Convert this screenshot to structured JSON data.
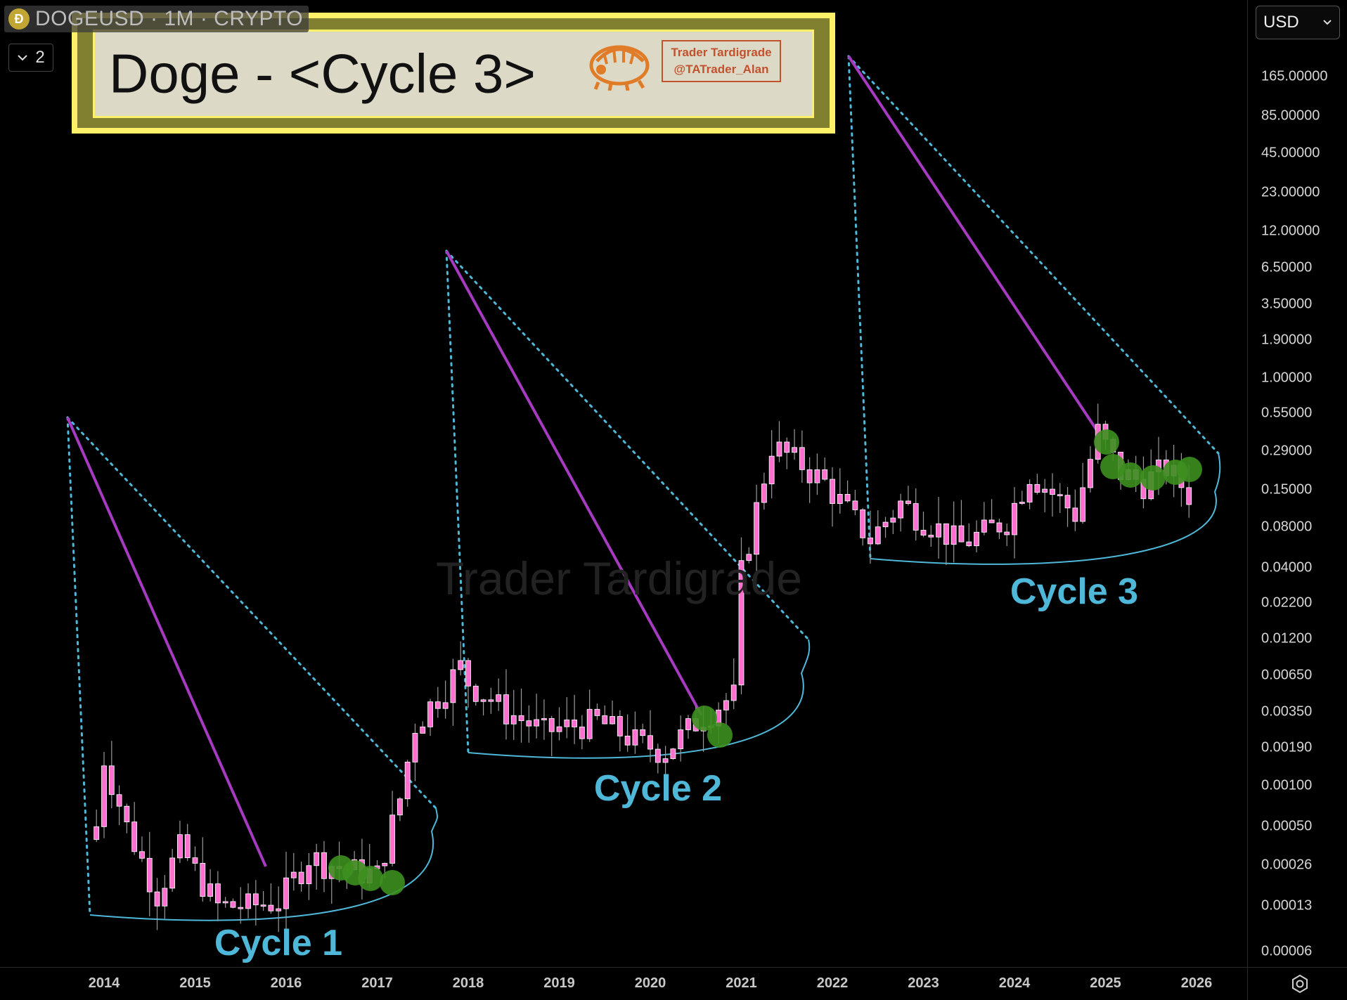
{
  "symbol_bar": {
    "coin_icon": "doge-coin-icon",
    "text": "DOGEUSD · 1M · CRYPTO"
  },
  "collapse_control": {
    "icon": "chevron-down-icon",
    "count": "2"
  },
  "currency": {
    "label": "USD",
    "icon": "chevron-down-icon"
  },
  "title_box": {
    "title": "Doge - <Cycle 3>",
    "logo_icon": "tardigrade-logo-icon",
    "handle_line1": "Trader Tardigrade",
    "handle_line2": "@TATrader_Alan"
  },
  "watermark": "Trader Tardigrade",
  "cycle_labels": [
    "Cycle 1",
    "Cycle 2",
    "Cycle 3"
  ],
  "settings_icon": "settings-gear-icon",
  "colors": {
    "background": "#000000",
    "candle": "#ff6fd0",
    "wick": "#9a9a9a",
    "trend_line": "#a63ac0",
    "dotted_line": "#4fb8d8",
    "bowl": "#4fb8d8",
    "marker": "#3d8f1f",
    "title_border": "#fff06a"
  },
  "chart_data": {
    "type": "candlestick",
    "title": "Doge - <Cycle 3>",
    "symbol": "DOGEUSD",
    "interval": "1M",
    "y_scale": "log",
    "y_ticks": [
      "165.00000",
      "85.00000",
      "45.00000",
      "23.00000",
      "12.00000",
      "6.50000",
      "3.50000",
      "1.90000",
      "1.00000",
      "0.55000",
      "0.29000",
      "0.15000",
      "0.08000",
      "0.04000",
      "0.02200",
      "0.01200",
      "0.00650",
      "0.00350",
      "0.00190",
      "0.00100",
      "0.00050",
      "0.00026",
      "0.00013",
      "0.00006"
    ],
    "x_ticks": [
      "2014",
      "2015",
      "2016",
      "2017",
      "2018",
      "2019",
      "2020",
      "2021",
      "2022",
      "2023",
      "2024",
      "2025",
      "2026"
    ],
    "approximate_path": [
      {
        "date": "2013-12",
        "price": 0.0005
      },
      {
        "date": "2014-01",
        "price": 0.0016
      },
      {
        "date": "2014-04",
        "price": 0.0005
      },
      {
        "date": "2014-08",
        "price": 0.00016
      },
      {
        "date": "2014-11",
        "price": 0.00035
      },
      {
        "date": "2015-04",
        "price": 0.00013
      },
      {
        "date": "2015-08",
        "price": 0.00013
      },
      {
        "date": "2015-12",
        "price": 0.00014
      },
      {
        "date": "2016-04",
        "price": 0.0003
      },
      {
        "date": "2016-08",
        "price": 0.00025
      },
      {
        "date": "2017-01",
        "price": 0.00022
      },
      {
        "date": "2017-04",
        "price": 0.0008
      },
      {
        "date": "2017-06",
        "price": 0.0028
      },
      {
        "date": "2017-12",
        "price": 0.0075
      },
      {
        "date": "2018-01",
        "price": 0.0058
      },
      {
        "date": "2018-06",
        "price": 0.0035
      },
      {
        "date": "2018-11",
        "price": 0.0025
      },
      {
        "date": "2019-06",
        "price": 0.003
      },
      {
        "date": "2019-12",
        "price": 0.002
      },
      {
        "date": "2020-03",
        "price": 0.0018
      },
      {
        "date": "2020-08",
        "price": 0.0033
      },
      {
        "date": "2020-12",
        "price": 0.0046
      },
      {
        "date": "2021-01",
        "price": 0.037
      },
      {
        "date": "2021-05",
        "price": 0.32
      },
      {
        "date": "2021-09",
        "price": 0.23
      },
      {
        "date": "2021-12",
        "price": 0.17
      },
      {
        "date": "2022-06",
        "price": 0.065
      },
      {
        "date": "2022-10",
        "price": 0.12
      },
      {
        "date": "2023-06",
        "price": 0.06
      },
      {
        "date": "2023-12",
        "price": 0.09
      },
      {
        "date": "2024-03",
        "price": 0.2
      },
      {
        "date": "2024-09",
        "price": 0.1
      },
      {
        "date": "2024-12",
        "price": 0.4
      },
      {
        "date": "2025-03",
        "price": 0.2
      },
      {
        "date": "2025-06",
        "price": 0.17
      },
      {
        "date": "2025-09",
        "price": 0.22
      },
      {
        "date": "2025-12",
        "price": 0.14
      }
    ],
    "cycle_peaks": [
      {
        "cycle": "Cycle 1",
        "date": "2013-12",
        "price": 0.6
      },
      {
        "cycle": "Cycle 2",
        "date": "2017-12",
        "price": 9.5
      },
      {
        "cycle": "Cycle 3",
        "date": "2022-03",
        "price": 150
      }
    ]
  }
}
